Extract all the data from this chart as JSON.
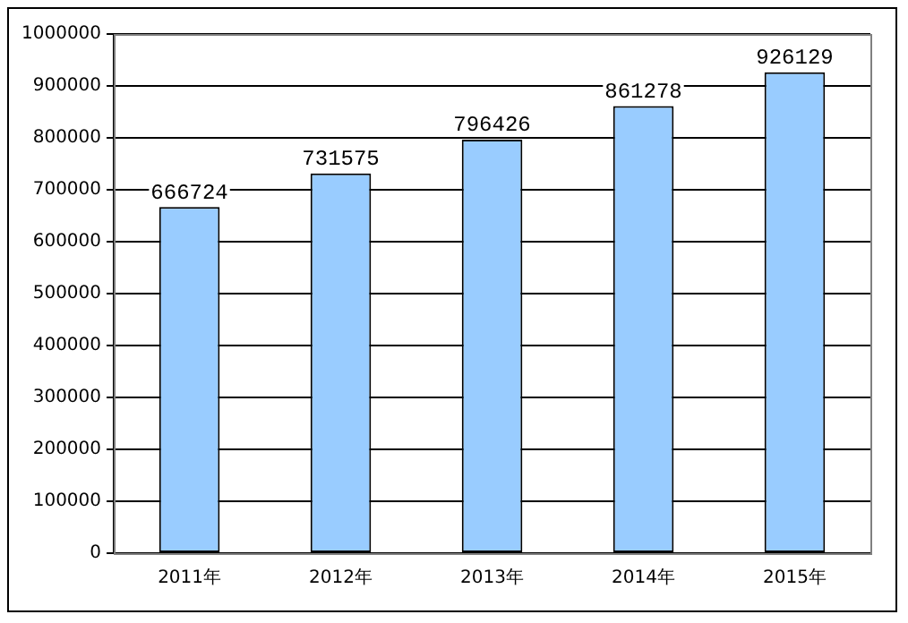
{
  "chart_data": {
    "type": "bar",
    "categories": [
      "2011年",
      "2012年",
      "2013年",
      "2014年",
      "2015年"
    ],
    "values": [
      666724,
      731575,
      796426,
      861278,
      926129
    ],
    "color": "#99ccff",
    "ylim": [
      0,
      1000000
    ],
    "yticks": [
      0,
      100000,
      200000,
      300000,
      400000,
      500000,
      600000,
      700000,
      800000,
      900000,
      1000000
    ],
    "grid": "y",
    "data_labels": true
  }
}
